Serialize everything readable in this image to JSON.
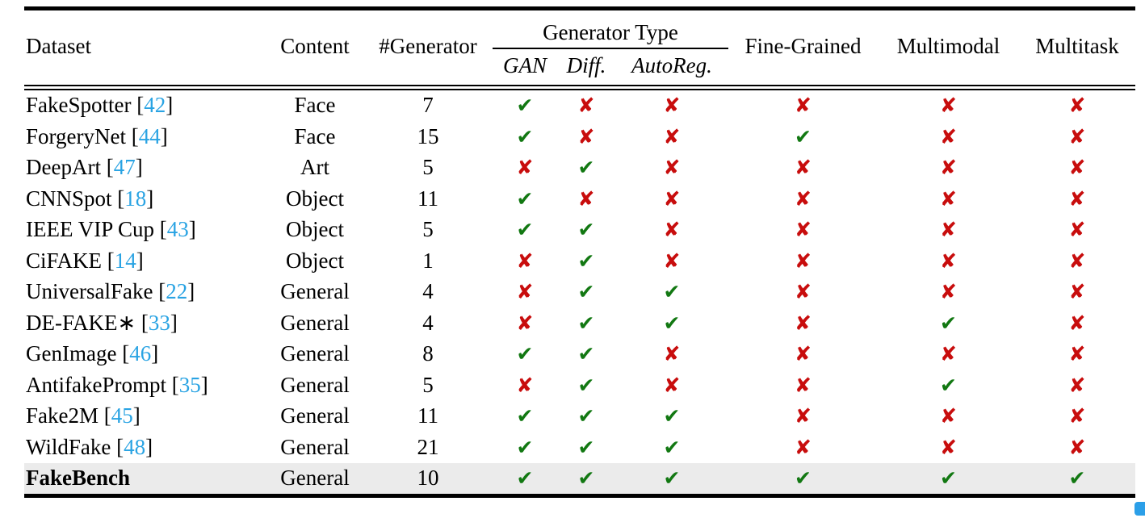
{
  "table": {
    "headers": {
      "dataset": "Dataset",
      "content": "Content",
      "num_generator": "#Generator",
      "generator_type": "Generator Type",
      "gan": "GAN",
      "diff": "Diff.",
      "autoreg": "AutoReg.",
      "fine_grained": "Fine-Grained",
      "multimodal": "Multimodal",
      "multitask": "Multitask"
    },
    "mark_glyphs": {
      "check": "✔",
      "cross": "✘"
    },
    "colors": {
      "check": "#127812",
      "cross": "#c80d0d",
      "reference": "#29a3e3",
      "highlight_row_bg": "#ebebeb",
      "corner_mark": "#2b9fe8"
    },
    "rows": [
      {
        "dataset": "FakeSpotter",
        "ref": "42",
        "content": "Face",
        "num_generator": "7",
        "gan": true,
        "diff": false,
        "autoreg": false,
        "fine_grained": false,
        "multimodal": false,
        "multitask": false,
        "highlight": false
      },
      {
        "dataset": "ForgeryNet",
        "ref": "44",
        "content": "Face",
        "num_generator": "15",
        "gan": true,
        "diff": false,
        "autoreg": false,
        "fine_grained": true,
        "multimodal": false,
        "multitask": false,
        "highlight": false
      },
      {
        "dataset": "DeepArt",
        "ref": "47",
        "content": "Art",
        "num_generator": "5",
        "gan": false,
        "diff": true,
        "autoreg": false,
        "fine_grained": false,
        "multimodal": false,
        "multitask": false,
        "highlight": false
      },
      {
        "dataset": "CNNSpot",
        "ref": "18",
        "content": "Object",
        "num_generator": "11",
        "gan": true,
        "diff": false,
        "autoreg": false,
        "fine_grained": false,
        "multimodal": false,
        "multitask": false,
        "highlight": false
      },
      {
        "dataset": "IEEE VIP Cup",
        "ref": "43",
        "content": "Object",
        "num_generator": "5",
        "gan": true,
        "diff": true,
        "autoreg": false,
        "fine_grained": false,
        "multimodal": false,
        "multitask": false,
        "highlight": false
      },
      {
        "dataset": "CiFAKE",
        "ref": "14",
        "content": "Object",
        "num_generator": "1",
        "gan": false,
        "diff": true,
        "autoreg": false,
        "fine_grained": false,
        "multimodal": false,
        "multitask": false,
        "highlight": false
      },
      {
        "dataset": "UniversalFake",
        "ref": "22",
        "content": "General",
        "num_generator": "4",
        "gan": false,
        "diff": true,
        "autoreg": true,
        "fine_grained": false,
        "multimodal": false,
        "multitask": false,
        "highlight": false
      },
      {
        "dataset": "DE-FAKE∗",
        "ref": "33",
        "content": "General",
        "num_generator": "4",
        "gan": false,
        "diff": true,
        "autoreg": true,
        "fine_grained": false,
        "multimodal": true,
        "multitask": false,
        "highlight": false
      },
      {
        "dataset": "GenImage",
        "ref": "46",
        "content": "General",
        "num_generator": "8",
        "gan": true,
        "diff": true,
        "autoreg": false,
        "fine_grained": false,
        "multimodal": false,
        "multitask": false,
        "highlight": false
      },
      {
        "dataset": "AntifakePrompt",
        "ref": "35",
        "content": "General",
        "num_generator": "5",
        "gan": false,
        "diff": true,
        "autoreg": false,
        "fine_grained": false,
        "multimodal": true,
        "multitask": false,
        "highlight": false
      },
      {
        "dataset": "Fake2M",
        "ref": "45",
        "content": "General",
        "num_generator": "11",
        "gan": true,
        "diff": true,
        "autoreg": true,
        "fine_grained": false,
        "multimodal": false,
        "multitask": false,
        "highlight": false
      },
      {
        "dataset": "WildFake",
        "ref": "48",
        "content": "General",
        "num_generator": "21",
        "gan": true,
        "diff": true,
        "autoreg": true,
        "fine_grained": false,
        "multimodal": false,
        "multitask": false,
        "highlight": false
      },
      {
        "dataset": "FakeBench",
        "ref": "",
        "content": "General",
        "num_generator": "10",
        "gan": true,
        "diff": true,
        "autoreg": true,
        "fine_grained": true,
        "multimodal": true,
        "multitask": true,
        "highlight": true
      }
    ]
  }
}
